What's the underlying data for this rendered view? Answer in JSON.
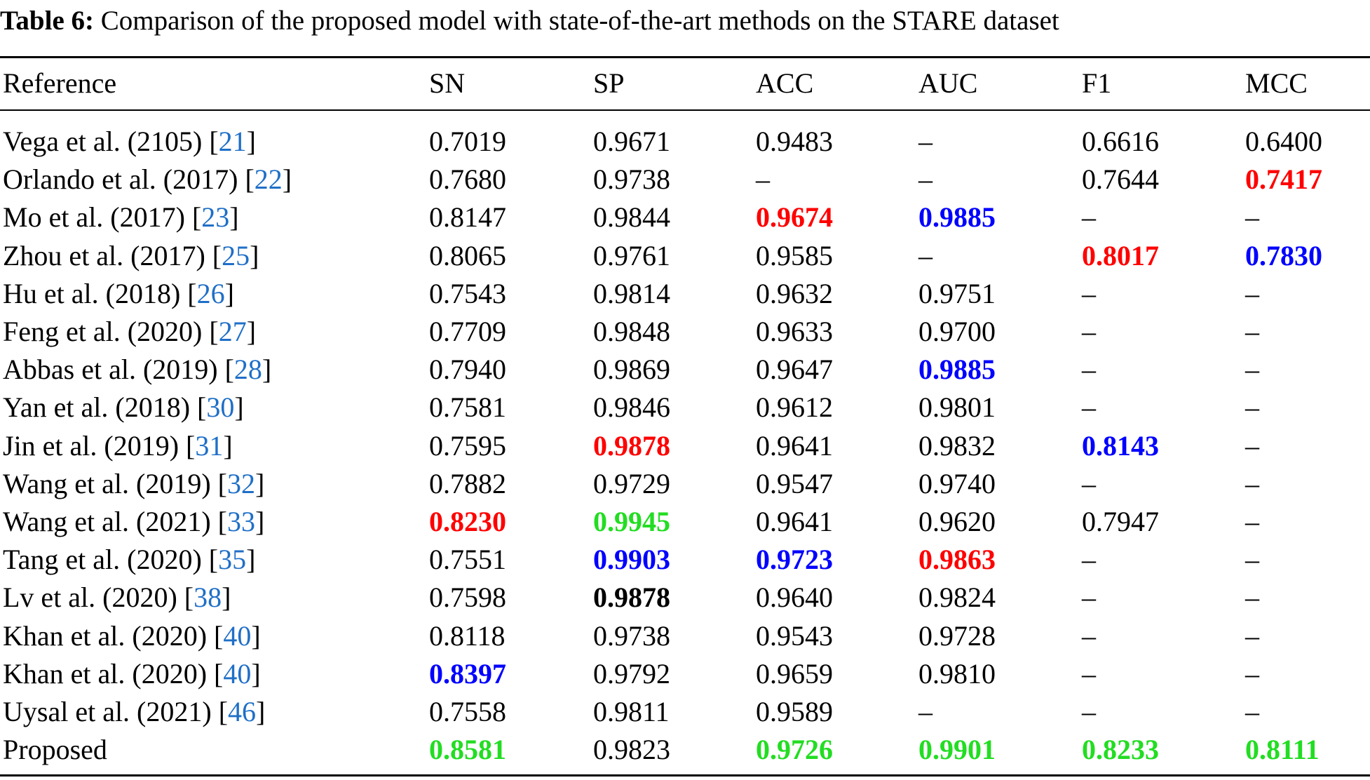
{
  "caption": {
    "label": "Table 6:",
    "text": "Comparison of the proposed model with state-of-the-art methods on the STARE dataset"
  },
  "colors": {
    "red": "#ff0000",
    "blue": "#0000ff",
    "green": "#22dd22",
    "link": "#1f6fc7"
  },
  "columns": [
    "Reference",
    "SN",
    "SP",
    "ACC",
    "AUC",
    "F1",
    "MCC"
  ],
  "rows": [
    {
      "ref": "Vega et al. (2105) [",
      "cite": "21",
      "close": "]",
      "vals": [
        "0.7019",
        "0.9671",
        "0.9483",
        "–",
        "0.6616",
        "0.6400"
      ],
      "styles": [
        "",
        "",
        "",
        "",
        "",
        ""
      ]
    },
    {
      "ref": "Orlando et al. (2017) [",
      "cite": "22",
      "close": "]",
      "vals": [
        "0.7680",
        "0.9738",
        "–",
        "–",
        "0.7644",
        "0.7417"
      ],
      "styles": [
        "",
        "",
        "",
        "",
        "",
        "red"
      ]
    },
    {
      "ref": "Mo et al. (2017) [",
      "cite": "23",
      "close": "]",
      "vals": [
        "0.8147",
        "0.9844",
        "0.9674",
        "0.9885",
        "–",
        "–"
      ],
      "styles": [
        "",
        "",
        "red",
        "blue",
        "",
        ""
      ]
    },
    {
      "ref": "Zhou et al. (2017) [",
      "cite": "25",
      "close": "]",
      "vals": [
        "0.8065",
        "0.9761",
        "0.9585",
        "–",
        "0.8017",
        "0.7830"
      ],
      "styles": [
        "",
        "",
        "",
        "",
        "red",
        "blue"
      ]
    },
    {
      "ref": "Hu et al. (2018) [",
      "cite": "26",
      "close": "]",
      "vals": [
        "0.7543",
        "0.9814",
        "0.9632",
        "0.9751",
        "–",
        "–"
      ],
      "styles": [
        "",
        "",
        "",
        "",
        "",
        ""
      ]
    },
    {
      "ref": "Feng et al. (2020) [",
      "cite": "27",
      "close": "]",
      "vals": [
        "0.7709",
        "0.9848",
        "0.9633",
        "0.9700",
        "–",
        "–"
      ],
      "styles": [
        "",
        "",
        "",
        "",
        "",
        ""
      ]
    },
    {
      "ref": "Abbas et al. (2019) [",
      "cite": "28",
      "close": "]",
      "vals": [
        "0.7940",
        "0.9869",
        "0.9647",
        "0.9885",
        "–",
        "–"
      ],
      "styles": [
        "",
        "",
        "",
        "blue",
        "",
        ""
      ]
    },
    {
      "ref": "Yan et al. (2018) [",
      "cite": "30",
      "close": "]",
      "vals": [
        "0.7581",
        "0.9846",
        "0.9612",
        "0.9801",
        "–",
        "–"
      ],
      "styles": [
        "",
        "",
        "",
        "",
        "",
        ""
      ]
    },
    {
      "ref": "Jin et al. (2019) [",
      "cite": "31",
      "close": "]",
      "vals": [
        "0.7595",
        "0.9878",
        "0.9641",
        "0.9832",
        "0.8143",
        "–"
      ],
      "styles": [
        "",
        "red",
        "",
        "",
        "blue",
        ""
      ]
    },
    {
      "ref": "Wang et al. (2019) [",
      "cite": "32",
      "close": "]",
      "vals": [
        "0.7882",
        "0.9729",
        "0.9547",
        "0.9740",
        "–",
        "–"
      ],
      "styles": [
        "",
        "",
        "",
        "",
        "",
        ""
      ]
    },
    {
      "ref": "Wang et al. (2021) [",
      "cite": "33",
      "close": "]",
      "vals": [
        "0.8230",
        "0.9945",
        "0.9641",
        "0.9620",
        "0.7947",
        "–"
      ],
      "styles": [
        "red",
        "green",
        "",
        "",
        "",
        ""
      ]
    },
    {
      "ref": "Tang et al. (2020) [",
      "cite": "35",
      "close": "]",
      "vals": [
        "0.7551",
        "0.9903",
        "0.9723",
        "0.9863",
        "–",
        "–"
      ],
      "styles": [
        "",
        "blue",
        "blue",
        "red",
        "",
        ""
      ]
    },
    {
      "ref": "Lv et al. (2020) [",
      "cite": "38",
      "close": "]",
      "vals": [
        "0.7598",
        "0.9878",
        "0.9640",
        "0.9824",
        "–",
        "–"
      ],
      "styles": [
        "",
        "black",
        "",
        "",
        "",
        ""
      ]
    },
    {
      "ref": "Khan et al. (2020) [",
      "cite": "40",
      "close": "]",
      "vals": [
        "0.8118",
        "0.9738",
        "0.9543",
        "0.9728",
        "–",
        "–"
      ],
      "styles": [
        "",
        "",
        "",
        "",
        "",
        ""
      ]
    },
    {
      "ref": "Khan et al. (2020) [",
      "cite": "40",
      "close": "]",
      "vals": [
        "0.8397",
        "0.9792",
        "0.9659",
        "0.9810",
        "–",
        "–"
      ],
      "styles": [
        "blue",
        "",
        "",
        "",
        "",
        ""
      ]
    },
    {
      "ref": "Uysal et al. (2021) [",
      "cite": "46",
      "close": "]",
      "vals": [
        "0.7558",
        "0.9811",
        "0.9589",
        "–",
        "–",
        "–"
      ],
      "styles": [
        "",
        "",
        "",
        "",
        "",
        ""
      ]
    },
    {
      "ref": "Proposed",
      "cite": "",
      "close": "",
      "vals": [
        "0.8581",
        "0.9823",
        "0.9726",
        "0.9901",
        "0.8233",
        "0.8111"
      ],
      "styles": [
        "green",
        "",
        "green",
        "green",
        "green",
        "green"
      ]
    }
  ]
}
